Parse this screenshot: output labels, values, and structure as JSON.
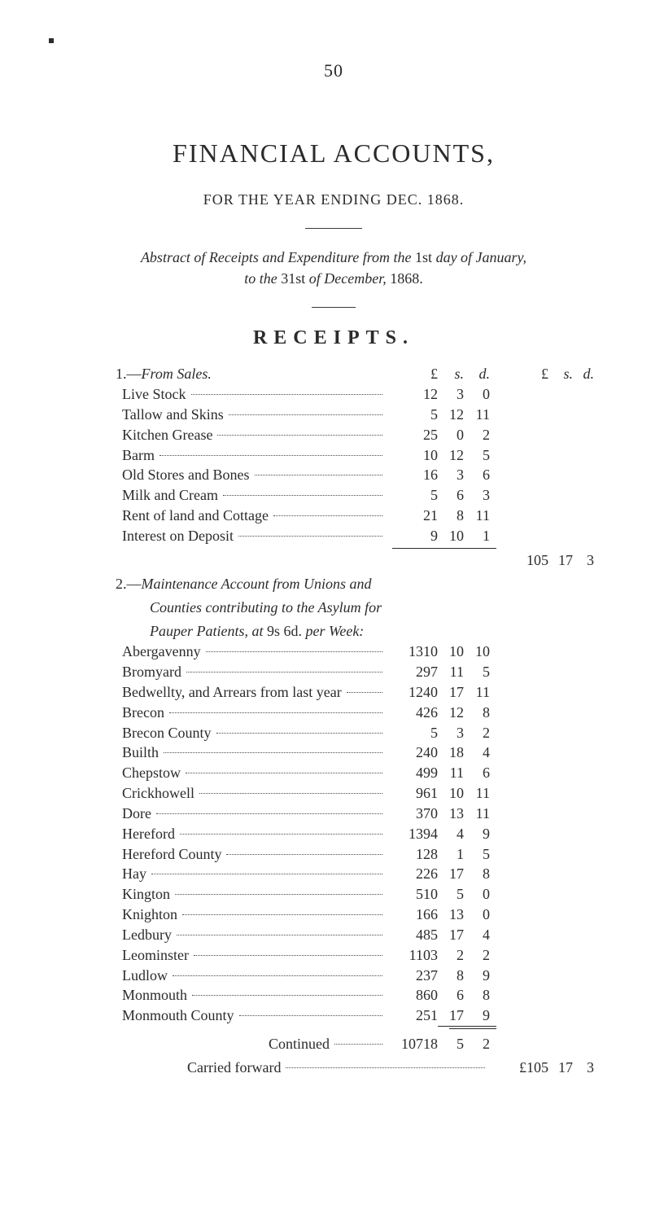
{
  "page_number": "50",
  "title": "FINANCIAL ACCOUNTS,",
  "subtitle": "FOR THE YEAR ENDING DEC. 1868.",
  "abstract_line1_a": "Abstract of Receipts and Expenditure from the ",
  "abstract_line1_b": "1st",
  "abstract_line1_c": " day of January,",
  "abstract_line2_a": "to the ",
  "abstract_line2_b": "31st",
  "abstract_line2_c": " of December, ",
  "abstract_line2_d": "1868.",
  "receipts_heading": "RECEIPTS.",
  "col_heads": {
    "L": "£",
    "s": "s.",
    "d": "d."
  },
  "section1": {
    "num": "1.—",
    "title": "From Sales.",
    "items": [
      {
        "label": "Live Stock",
        "L": "12",
        "s": "3",
        "d": "0"
      },
      {
        "label": "Tallow and Skins",
        "L": "5",
        "s": "12",
        "d": "11"
      },
      {
        "label": "Kitchen Grease",
        "L": "25",
        "s": "0",
        "d": "2"
      },
      {
        "label": "Barm",
        "L": "10",
        "s": "12",
        "d": "5"
      },
      {
        "label": "Old Stores and Bones",
        "L": "16",
        "s": "3",
        "d": "6"
      },
      {
        "label": "Milk and Cream",
        "L": "5",
        "s": "6",
        "d": "3"
      },
      {
        "label": "Rent of land and Cottage",
        "L": "21",
        "s": "8",
        "d": "11"
      },
      {
        "label": "Interest on Deposit",
        "L": "9",
        "s": "10",
        "d": "1"
      }
    ],
    "total": {
      "L": "105",
      "s": "17",
      "d": "3"
    }
  },
  "section2": {
    "num": "2.—",
    "title": "Maintenance Account from Unions and",
    "line2": "Counties contributing to the Asylum for",
    "line3_a": "Pauper Patients, at ",
    "line3_b": "9s 6d.",
    "line3_c": " per Week:",
    "items": [
      {
        "label": "Abergavenny",
        "L": "1310",
        "s": "10",
        "d": "10"
      },
      {
        "label": "Bromyard",
        "L": "297",
        "s": "11",
        "d": "5"
      },
      {
        "label": "Bedwellty, and Arrears from last year",
        "L": "1240",
        "s": "17",
        "d": "11"
      },
      {
        "label": "Brecon",
        "L": "426",
        "s": "12",
        "d": "8"
      },
      {
        "label": "Brecon County",
        "L": "5",
        "s": "3",
        "d": "2"
      },
      {
        "label": "Builth",
        "L": "240",
        "s": "18",
        "d": "4"
      },
      {
        "label": "Chepstow",
        "L": "499",
        "s": "11",
        "d": "6"
      },
      {
        "label": "Crickhowell",
        "L": "961",
        "s": "10",
        "d": "11"
      },
      {
        "label": "Dore",
        "L": "370",
        "s": "13",
        "d": "11"
      },
      {
        "label": "Hereford",
        "L": "1394",
        "s": "4",
        "d": "9"
      },
      {
        "label": "Hereford County",
        "L": "128",
        "s": "1",
        "d": "5"
      },
      {
        "label": "Hay",
        "L": "226",
        "s": "17",
        "d": "8"
      },
      {
        "label": "Kington",
        "L": "510",
        "s": "5",
        "d": "0"
      },
      {
        "label": "Knighton",
        "L": "166",
        "s": "13",
        "d": "0"
      },
      {
        "label": "Ledbury",
        "L": "485",
        "s": "17",
        "d": "4"
      },
      {
        "label": "Leominster",
        "L": "1103",
        "s": "2",
        "d": "2"
      },
      {
        "label": "Ludlow",
        "L": "237",
        "s": "8",
        "d": "9"
      },
      {
        "label": "Monmouth",
        "L": "860",
        "s": "6",
        "d": "8"
      },
      {
        "label": "Monmouth County",
        "L": "251",
        "s": "17",
        "d": "9"
      }
    ],
    "continued_label": "Continued",
    "continued": {
      "L": "10718",
      "s": "5",
      "d": "2"
    }
  },
  "carried_forward_label": "Carried forward",
  "carried_forward": {
    "L": "£105",
    "s": "17",
    "d": "3"
  }
}
